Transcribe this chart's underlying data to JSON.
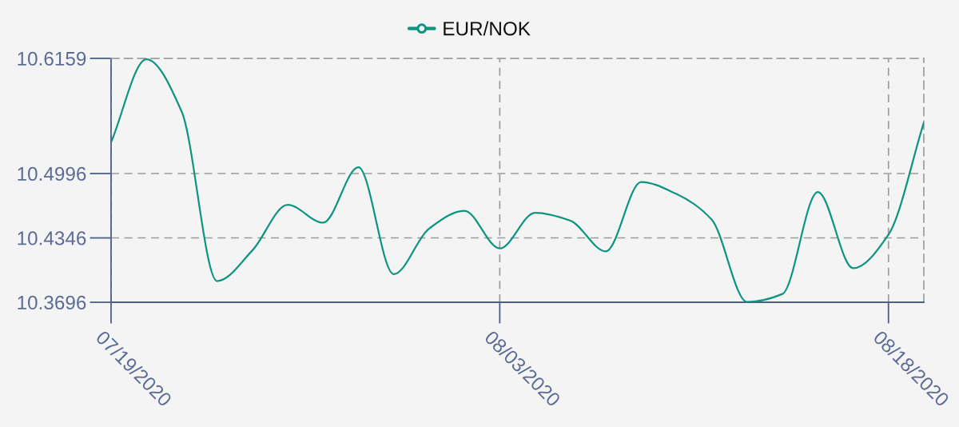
{
  "chart_data": {
    "type": "line",
    "categories": [
      "07/19/2020",
      null,
      null,
      null,
      null,
      null,
      null,
      null,
      null,
      null,
      null,
      "08/03/2020",
      null,
      null,
      null,
      null,
      null,
      null,
      null,
      null,
      null,
      null,
      "08/18/2020",
      null
    ],
    "series": [
      {
        "name": "EUR/NOK",
        "color": "#109482",
        "values": [
          10.531,
          10.615,
          10.562,
          10.391,
          10.422,
          10.468,
          10.45,
          10.506,
          10.398,
          10.444,
          10.462,
          10.424,
          10.46,
          10.452,
          10.421,
          10.491,
          10.479,
          10.453,
          10.37,
          10.378,
          10.481,
          10.404,
          10.438,
          10.551
        ]
      }
    ],
    "ylim": [
      10.3696,
      10.6159
    ],
    "yticks": [
      10.3696,
      10.4346,
      10.4996,
      10.6159
    ],
    "grid": true,
    "legend": "top"
  }
}
